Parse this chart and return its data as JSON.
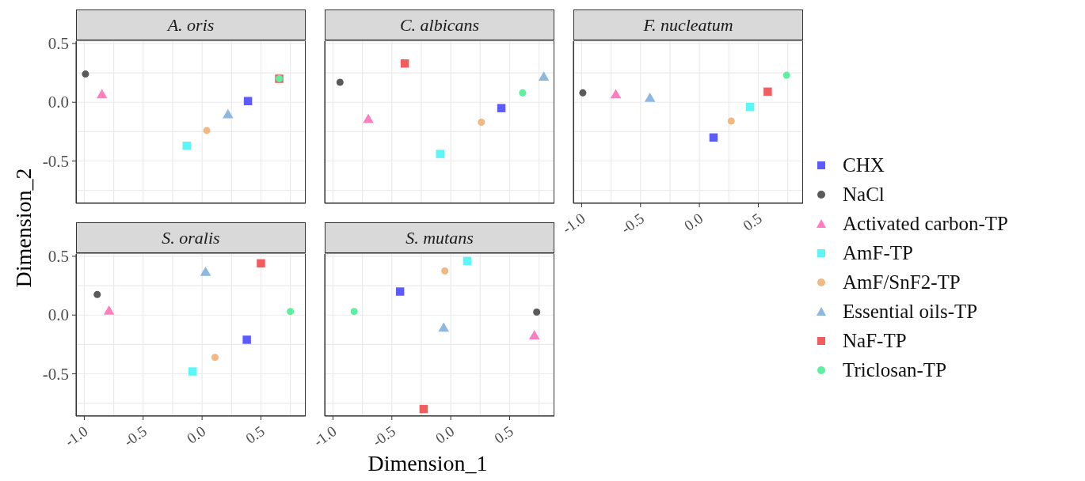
{
  "chart_data": [
    {
      "type": "scatter",
      "title": "A. oris",
      "ylabel": "Dimension_2",
      "xlim": [
        -1.07,
        0.88
      ],
      "ylim": [
        -0.86,
        0.52
      ],
      "xticks": [
        {
          "value": -1,
          "label": null
        },
        {
          "value": -0.75,
          "label": null
        },
        {
          "value": -0.5,
          "label": null
        },
        {
          "value": -0.25,
          "label": null
        },
        {
          "value": 0,
          "label": null
        },
        {
          "value": 0.25,
          "label": null
        },
        {
          "value": 0.5,
          "label": null
        },
        {
          "value": 0.75,
          "label": null
        }
      ],
      "yticks": [
        {
          "value": -0.75,
          "label": null
        },
        {
          "value": -0.5,
          "label": "-0.5"
        },
        {
          "value": -0.25,
          "label": null
        },
        {
          "value": 0,
          "label": "0.0"
        },
        {
          "value": 0.25,
          "label": null
        },
        {
          "value": 0.5,
          "label": "0.5"
        }
      ],
      "grid": true,
      "tick_labels": "y",
      "legend": "right",
      "series": [
        {
          "name": "CHX",
          "color": "#5b5bff",
          "marker": "square",
          "x": [
            0.39
          ],
          "values": [
            0.01
          ]
        },
        {
          "name": "NaCl",
          "color": "#5a5a5a",
          "marker": "circle",
          "x": [
            -0.99
          ],
          "values": [
            0.24
          ]
        },
        {
          "name": "Activated carbon-TP",
          "color": "#ff7ec0",
          "marker": "triangle",
          "x": [
            -0.85
          ],
          "values": [
            0.06
          ]
        },
        {
          "name": "AmF-TP",
          "color": "#5cf6f6",
          "marker": "square",
          "x": [
            -0.13
          ],
          "values": [
            -0.37
          ]
        },
        {
          "name": "AmF/SnF2-TP",
          "color": "#f2b882",
          "marker": "circle",
          "x": [
            0.04
          ],
          "values": [
            -0.24
          ]
        },
        {
          "name": "Essential oils-TP",
          "color": "#8db8e0",
          "marker": "triangle",
          "x": [
            0.22
          ],
          "values": [
            -0.11
          ]
        },
        {
          "name": "NaF-TP",
          "color": "#f25c5c",
          "marker": "square",
          "x": [
            0.655
          ],
          "values": [
            0.2
          ]
        },
        {
          "name": "Triclosan-TP",
          "color": "#5cf0a0",
          "marker": "circle",
          "x": [
            0.655
          ],
          "values": [
            0.2
          ]
        }
      ]
    },
    {
      "type": "scatter",
      "title": "C. albicans",
      "xlim": [
        -1.07,
        0.88
      ],
      "ylim": [
        -0.86,
        0.52
      ],
      "xticks": [
        {
          "value": -1,
          "label": null
        },
        {
          "value": -0.75,
          "label": null
        },
        {
          "value": -0.5,
          "label": null
        },
        {
          "value": -0.25,
          "label": null
        },
        {
          "value": 0,
          "label": null
        },
        {
          "value": 0.25,
          "label": null
        },
        {
          "value": 0.5,
          "label": null
        },
        {
          "value": 0.75,
          "label": null
        }
      ],
      "yticks": [
        {
          "value": -0.75,
          "label": null
        },
        {
          "value": -0.5,
          "label": null
        },
        {
          "value": -0.25,
          "label": null
        },
        {
          "value": 0,
          "label": null
        },
        {
          "value": 0.25,
          "label": null
        },
        {
          "value": 0.5,
          "label": null
        }
      ],
      "grid": true,
      "tick_labels": false,
      "series": [
        {
          "color": "#5b5bff",
          "marker": "square",
          "x": [
            0.43
          ],
          "values": [
            -0.05
          ]
        },
        {
          "color": "#5a5a5a",
          "marker": "circle",
          "x": [
            -0.94
          ],
          "values": [
            0.17
          ]
        },
        {
          "color": "#ff7ec0",
          "marker": "triangle",
          "x": [
            -0.7
          ],
          "values": [
            -0.15
          ]
        },
        {
          "color": "#5cf6f6",
          "marker": "square",
          "x": [
            -0.09
          ],
          "values": [
            -0.44
          ]
        },
        {
          "color": "#f2b882",
          "marker": "circle",
          "x": [
            0.26
          ],
          "values": [
            -0.17
          ]
        },
        {
          "color": "#8db8e0",
          "marker": "triangle",
          "x": [
            0.79
          ],
          "values": [
            0.21
          ]
        },
        {
          "color": "#f25c5c",
          "marker": "square",
          "x": [
            -0.39
          ],
          "values": [
            0.33
          ]
        },
        {
          "color": "#5cf0a0",
          "marker": "circle",
          "x": [
            0.61
          ],
          "values": [
            0.08
          ]
        }
      ]
    },
    {
      "type": "scatter",
      "title": "F. nucleatum",
      "xlim": [
        -1.07,
        0.88
      ],
      "ylim": [
        -0.86,
        0.52
      ],
      "xticks": [
        {
          "value": -1,
          "label": "-1.0"
        },
        {
          "value": -0.75,
          "label": null
        },
        {
          "value": -0.5,
          "label": "-0.5"
        },
        {
          "value": -0.25,
          "label": null
        },
        {
          "value": 0,
          "label": "0.0"
        },
        {
          "value": 0.25,
          "label": null
        },
        {
          "value": 0.5,
          "label": "0.5"
        },
        {
          "value": 0.75,
          "label": null
        }
      ],
      "yticks": [
        {
          "value": -0.75,
          "label": null
        },
        {
          "value": -0.5,
          "label": null
        },
        {
          "value": -0.25,
          "label": null
        },
        {
          "value": 0,
          "label": null
        },
        {
          "value": 0.25,
          "label": null
        },
        {
          "value": 0.5,
          "label": null
        }
      ],
      "grid": true,
      "tick_labels": "x",
      "series": [
        {
          "color": "#5b5bff",
          "marker": "square",
          "x": [
            0.12
          ],
          "values": [
            -0.3
          ]
        },
        {
          "color": "#5a5a5a",
          "marker": "circle",
          "x": [
            -0.99
          ],
          "values": [
            0.08
          ]
        },
        {
          "color": "#ff7ec0",
          "marker": "triangle",
          "x": [
            -0.71
          ],
          "values": [
            0.06
          ]
        },
        {
          "color": "#5cf6f6",
          "marker": "square",
          "x": [
            0.43
          ],
          "values": [
            -0.04
          ]
        },
        {
          "color": "#f2b882",
          "marker": "circle",
          "x": [
            0.27
          ],
          "values": [
            -0.16
          ]
        },
        {
          "color": "#8db8e0",
          "marker": "triangle",
          "x": [
            -0.42
          ],
          "values": [
            0.03
          ]
        },
        {
          "color": "#f25c5c",
          "marker": "square",
          "x": [
            0.58
          ],
          "values": [
            0.09
          ]
        },
        {
          "color": "#5cf0a0",
          "marker": "circle",
          "x": [
            0.74
          ],
          "values": [
            0.23
          ]
        }
      ]
    },
    {
      "type": "scatter",
      "title": "S. oralis",
      "xlim": [
        -1.07,
        0.88
      ],
      "ylim": [
        -0.86,
        0.52
      ],
      "xticks": [
        {
          "value": -1,
          "label": "-1.0"
        },
        {
          "value": -0.75,
          "label": null
        },
        {
          "value": -0.5,
          "label": "-0.5"
        },
        {
          "value": -0.25,
          "label": null
        },
        {
          "value": 0,
          "label": "0.0"
        },
        {
          "value": 0.25,
          "label": null
        },
        {
          "value": 0.5,
          "label": "0.5"
        },
        {
          "value": 0.75,
          "label": null
        }
      ],
      "yticks": [
        {
          "value": -0.75,
          "label": null
        },
        {
          "value": -0.5,
          "label": "-0.5"
        },
        {
          "value": -0.25,
          "label": null
        },
        {
          "value": 0,
          "label": "0.0"
        },
        {
          "value": 0.25,
          "label": null
        },
        {
          "value": 0.5,
          "label": "0.5"
        }
      ],
      "grid": true,
      "series": [
        {
          "color": "#5b5bff",
          "marker": "square",
          "x": [
            0.38
          ],
          "values": [
            -0.21
          ]
        },
        {
          "color": "#5a5a5a",
          "marker": "circle",
          "x": [
            -0.89
          ],
          "values": [
            0.175
          ]
        },
        {
          "color": "#ff7ec0",
          "marker": "triangle",
          "x": [
            -0.79
          ],
          "values": [
            0.03
          ]
        },
        {
          "color": "#5cf6f6",
          "marker": "square",
          "x": [
            -0.08
          ],
          "values": [
            -0.48
          ]
        },
        {
          "color": "#f2b882",
          "marker": "circle",
          "x": [
            0.11
          ],
          "values": [
            -0.36
          ]
        },
        {
          "color": "#8db8e0",
          "marker": "triangle",
          "x": [
            0.03
          ],
          "values": [
            0.36
          ]
        },
        {
          "color": "#f25c5c",
          "marker": "square",
          "x": [
            0.5
          ],
          "values": [
            0.44
          ]
        },
        {
          "color": "#5cf0a0",
          "marker": "circle",
          "x": [
            0.75
          ],
          "values": [
            0.03
          ]
        }
      ]
    },
    {
      "type": "scatter",
      "title": "S. mutans",
      "xlabel": "Dimension_1",
      "xlim": [
        -1.07,
        0.88
      ],
      "ylim": [
        -0.86,
        0.52
      ],
      "xticks": [
        {
          "value": -1,
          "label": "-1.0"
        },
        {
          "value": -0.75,
          "label": null
        },
        {
          "value": -0.5,
          "label": "-0.5"
        },
        {
          "value": -0.25,
          "label": null
        },
        {
          "value": 0,
          "label": "0.0"
        },
        {
          "value": 0.25,
          "label": null
        },
        {
          "value": 0.5,
          "label": "0.5"
        },
        {
          "value": 0.75,
          "label": null
        }
      ],
      "yticks": [
        {
          "value": -0.75,
          "label": null
        },
        {
          "value": -0.5,
          "label": null
        },
        {
          "value": -0.25,
          "label": null
        },
        {
          "value": 0,
          "label": null
        },
        {
          "value": 0.25,
          "label": null
        },
        {
          "value": 0.5,
          "label": null
        }
      ],
      "grid": true,
      "tick_labels": "x",
      "series": [
        {
          "color": "#5b5bff",
          "marker": "square",
          "x": [
            -0.43
          ],
          "values": [
            0.2
          ]
        },
        {
          "color": "#5a5a5a",
          "marker": "circle",
          "x": [
            0.73
          ],
          "values": [
            0.025
          ]
        },
        {
          "color": "#ff7ec0",
          "marker": "triangle",
          "x": [
            0.71
          ],
          "values": [
            -0.18
          ]
        },
        {
          "color": "#5cf6f6",
          "marker": "square",
          "x": [
            0.14
          ],
          "values": [
            0.46
          ]
        },
        {
          "color": "#f2b882",
          "marker": "circle",
          "x": [
            -0.05
          ],
          "values": [
            0.375
          ]
        },
        {
          "color": "#8db8e0",
          "marker": "triangle",
          "x": [
            -0.06
          ],
          "values": [
            -0.115
          ]
        },
        {
          "color": "#f25c5c",
          "marker": "square",
          "x": [
            -0.23
          ],
          "values": [
            -0.8
          ]
        },
        {
          "color": "#5cf0a0",
          "marker": "circle",
          "x": [
            -0.82
          ],
          "values": [
            0.03
          ]
        }
      ]
    }
  ]
}
